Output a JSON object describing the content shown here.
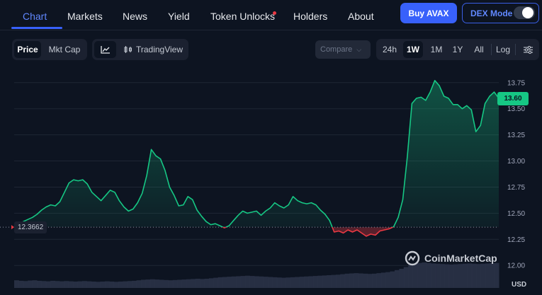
{
  "nav": {
    "tabs": [
      {
        "label": "Chart",
        "active": true
      },
      {
        "label": "Markets"
      },
      {
        "label": "News"
      },
      {
        "label": "Yield"
      },
      {
        "label": "Token Unlocks",
        "badge": "red-dot"
      },
      {
        "label": "Holders"
      },
      {
        "label": "About"
      }
    ],
    "buy_label": "Buy AVAX",
    "dex_label": "DEX Mode",
    "dex_on": false
  },
  "toolbar": {
    "metric_options": [
      {
        "label": "Price",
        "selected": true
      },
      {
        "label": "Mkt Cap"
      }
    ],
    "line_icon": "line-chart-icon",
    "tradingview_label": "TradingView",
    "tradingview_icon": "candlestick-icon",
    "compare_label": "Compare",
    "ranges": [
      {
        "label": "24h"
      },
      {
        "label": "1W",
        "selected": true
      },
      {
        "label": "1M"
      },
      {
        "label": "1Y"
      },
      {
        "label": "All"
      }
    ],
    "log_label": "Log",
    "settings_icon": "sliders-icon"
  },
  "chart_data": {
    "type": "area",
    "currency": "USD",
    "y_ticks": [
      "13.75",
      "13.50",
      "13.25",
      "13.00",
      "12.75",
      "12.50",
      "12.25",
      "12.00"
    ],
    "ylim": [
      11.9,
      13.85
    ],
    "baseline": 12.3662,
    "baseline_label": "12.3662",
    "current_price": 13.6,
    "current_label": "13.60",
    "colors": {
      "above": "#16c784",
      "below": "#ea3943"
    },
    "series": [
      {
        "values": [
          12.37,
          12.39,
          12.42,
          12.44,
          12.46,
          12.49,
          12.53,
          12.56,
          12.58,
          12.57,
          12.61,
          12.7,
          12.79,
          12.82,
          12.81,
          12.82,
          12.78,
          12.7,
          12.66,
          12.62,
          12.67,
          12.72,
          12.7,
          12.62,
          12.56,
          12.52,
          12.54,
          12.6,
          12.69,
          12.86,
          13.11,
          13.05,
          13.02,
          12.91,
          12.75,
          12.67,
          12.57,
          12.58,
          12.66,
          12.63,
          12.53,
          12.47,
          12.42,
          12.39,
          12.4,
          12.38,
          12.36,
          12.38,
          12.43,
          12.48,
          12.52,
          12.5,
          12.51,
          12.52,
          12.48,
          12.52,
          12.55,
          12.6,
          12.57,
          12.55,
          12.58,
          12.66,
          12.62,
          12.6,
          12.59,
          12.6,
          12.58,
          12.53,
          12.49,
          12.43,
          12.32,
          12.33,
          12.31,
          12.34,
          12.32,
          12.34,
          12.31,
          12.28,
          12.3,
          12.29,
          12.33,
          12.34,
          12.35,
          12.37,
          12.46,
          12.63,
          13.04,
          13.55,
          13.6,
          13.61,
          13.58,
          13.66,
          13.77,
          13.72,
          13.62,
          13.6,
          13.54,
          13.54,
          13.5,
          13.53,
          13.49,
          13.28,
          13.34,
          13.55,
          13.62,
          13.66,
          13.6
        ],
        "volume": [
          0.3,
          0.28,
          0.27,
          0.29,
          0.3,
          0.28,
          0.27,
          0.26,
          0.28,
          0.27,
          0.26,
          0.27,
          0.26,
          0.25,
          0.26,
          0.27,
          0.26,
          0.25,
          0.24,
          0.25,
          0.26,
          0.25,
          0.24,
          0.25,
          0.26,
          0.27,
          0.28,
          0.3,
          0.32,
          0.33,
          0.34,
          0.33,
          0.32,
          0.31,
          0.3,
          0.31,
          0.32,
          0.33,
          0.34,
          0.35,
          0.36,
          0.35,
          0.36,
          0.38,
          0.4,
          0.42,
          0.43,
          0.44,
          0.45,
          0.46,
          0.47,
          0.48,
          0.47,
          0.46,
          0.45,
          0.44,
          0.43,
          0.42,
          0.41,
          0.4,
          0.41,
          0.42,
          0.43,
          0.44,
          0.45,
          0.46,
          0.47,
          0.48,
          0.49,
          0.5,
          0.51,
          0.52,
          0.54,
          0.56,
          0.57,
          0.58,
          0.57,
          0.56,
          0.55,
          0.56,
          0.58,
          0.6,
          0.62,
          0.65,
          0.7,
          0.75,
          0.82,
          0.9,
          0.95,
          0.98,
          1.0,
          0.98,
          0.96,
          0.95,
          0.94,
          0.93,
          0.92,
          0.93,
          0.94,
          0.95,
          0.96,
          0.95,
          0.94,
          0.95,
          0.96,
          0.97,
          0.98
        ]
      }
    ]
  },
  "watermark": {
    "text": "CoinMarketCap",
    "icon": "coinmarketcap-logo-icon"
  },
  "axis_unit": "USD"
}
